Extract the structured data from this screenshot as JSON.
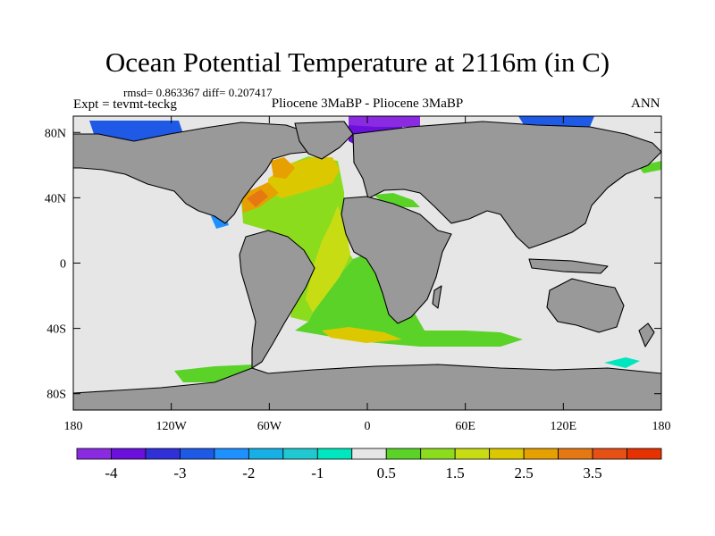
{
  "title": "Ocean Potential Temperature at 2116m (in C)",
  "stats": "rmsd= 0.863367 diff= 0.207417",
  "expt": "Expt = tevmt-teckg",
  "subtitle": "Pliocene   3MaBP - Pliocene   3MaBP",
  "season": "ANN",
  "lat_ticks": [
    {
      "label": "80N",
      "lat": 80
    },
    {
      "label": "40N",
      "lat": 40
    },
    {
      "label": "0",
      "lat": 0
    },
    {
      "label": "40S",
      "lat": -40
    },
    {
      "label": "80S",
      "lat": -80
    }
  ],
  "lon_ticks": [
    {
      "label": "180",
      "lon": -180
    },
    {
      "label": "120W",
      "lon": -120
    },
    {
      "label": "60W",
      "lon": -60
    },
    {
      "label": "0",
      "lon": 0
    },
    {
      "label": "60E",
      "lon": 60
    },
    {
      "label": "120E",
      "lon": 120
    },
    {
      "label": "180",
      "lon": 180
    }
  ],
  "colorbar": {
    "colors": [
      "#8a2be2",
      "#6a0fdc",
      "#3030d8",
      "#1e5ae6",
      "#1e90ff",
      "#16b0e6",
      "#20c8d2",
      "#00e6be",
      "#e6e6e6",
      "#5ad228",
      "#8cdc1e",
      "#c8dc14",
      "#dcc800",
      "#e6a000",
      "#e67814",
      "#e65014",
      "#e63200"
    ],
    "labels": [
      {
        "text": "-4",
        "edge": 1
      },
      {
        "text": "-3",
        "edge": 3
      },
      {
        "text": "-2",
        "edge": 5
      },
      {
        "text": "-1",
        "edge": 7
      },
      {
        "text": "0.5",
        "edge": 9
      },
      {
        "text": "1.5",
        "edge": 11
      },
      {
        "text": "2.5",
        "edge": 13
      },
      {
        "text": "3.5",
        "edge": 15
      }
    ]
  },
  "colors": {
    "ocean_neutral": "#e6e6e6",
    "land": "#999999",
    "coast": "#000000"
  }
}
